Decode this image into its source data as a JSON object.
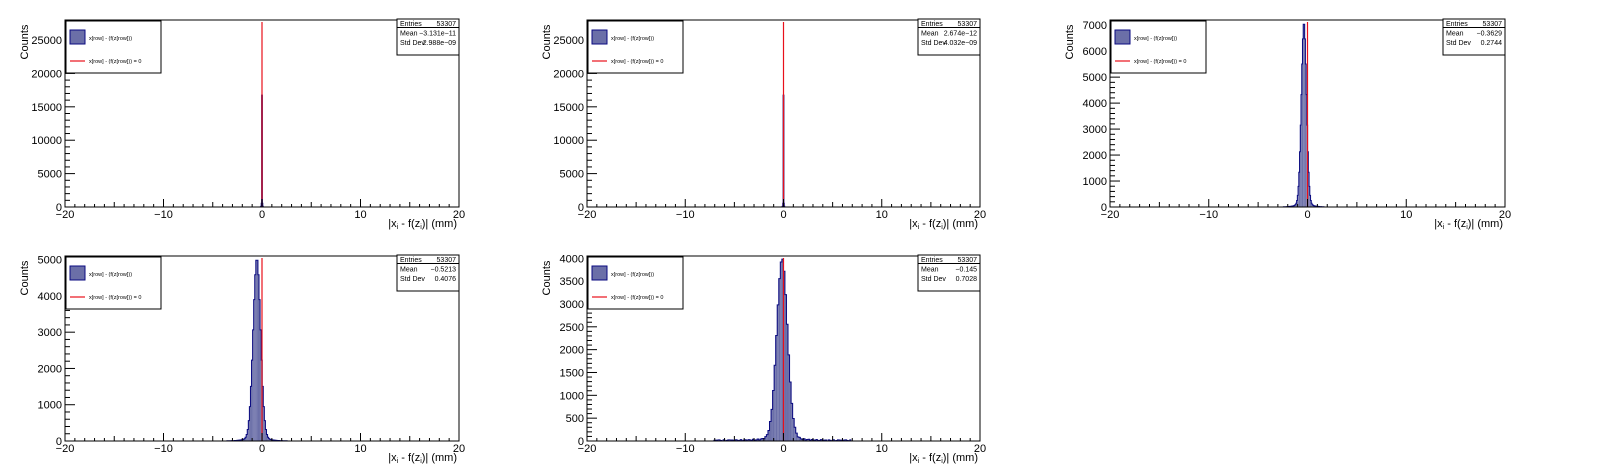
{
  "chart_data": [
    {
      "type": "histogram",
      "xlabel": "|x_i - f(z_i)| (mm)",
      "ylabel": "Counts",
      "xlim": [
        -20,
        20
      ],
      "ylim": [
        0,
        28000
      ],
      "yticks": [
        0,
        5000,
        10000,
        15000,
        20000,
        25000
      ],
      "xticks": [
        -20,
        -10,
        0,
        10,
        20
      ],
      "legend": {
        "position": "top-left",
        "entries": [
          "x[row] - (f(z[row]))",
          "x[row] - (f(z[row])) = 0"
        ]
      },
      "stats": {
        "Entries": "53307",
        "Mean": "−3.131e−11",
        "Std Dev": "2.988e−09"
      },
      "peak": {
        "center": 0.0,
        "sigma": 0.02,
        "height": 26500,
        "tail": 0
      },
      "reference_line_x": 0
    },
    {
      "type": "histogram",
      "xlabel": "|x_i - f(z_i)| (mm)",
      "ylabel": "Counts",
      "xlim": [
        -20,
        20
      ],
      "ylim": [
        0,
        28000
      ],
      "yticks": [
        0,
        5000,
        10000,
        15000,
        20000,
        25000
      ],
      "xticks": [
        -20,
        -10,
        0,
        10,
        20
      ],
      "legend": {
        "position": "top-left",
        "entries": [
          "x[row] - (f(z[row]))",
          "x[row] - (f(z[row])) = 0"
        ]
      },
      "stats": {
        "Entries": "53307",
        "Mean": "2.674e−12",
        "Std Dev": "4.032e−09"
      },
      "peak": {
        "center": 0.0,
        "sigma": 0.02,
        "height": 26500,
        "tail": 0
      },
      "reference_line_x": 0
    },
    {
      "type": "histogram",
      "xlabel": "|x_i - f(z_i)| (mm)",
      "ylabel": "Counts",
      "xlim": [
        -20,
        20
      ],
      "ylim": [
        0,
        7200
      ],
      "yticks": [
        0,
        1000,
        2000,
        3000,
        4000,
        5000,
        6000,
        7000
      ],
      "xticks": [
        -20,
        -10,
        0,
        10,
        20
      ],
      "legend": {
        "position": "top-left",
        "entries": [
          "x[row] - (f(z[row]))",
          "x[row] - (f(z[row])) = 0"
        ]
      },
      "stats": {
        "Entries": "53307",
        "Mean": "−0.3629",
        "Std Dev": "0.2744"
      },
      "peak": {
        "center": -0.36,
        "sigma": 0.26,
        "height": 6850,
        "tail": 0
      },
      "reference_line_x": 0
    },
    {
      "type": "histogram",
      "xlabel": "|x_i - f(z_i)| (mm)",
      "ylabel": "Counts",
      "xlim": [
        -20,
        20
      ],
      "ylim": [
        0,
        5100
      ],
      "yticks": [
        0,
        1000,
        2000,
        3000,
        4000,
        5000
      ],
      "xticks": [
        -20,
        -10,
        0,
        10,
        20
      ],
      "legend": {
        "position": "top-left",
        "entries": [
          "x[row] - (f(z[row]))",
          "x[row] - (f(z[row])) = 0"
        ]
      },
      "stats": {
        "Entries": "53307",
        "Mean": "−0.5213",
        "Std Dev": "0.4076"
      },
      "peak": {
        "center": -0.52,
        "sigma": 0.38,
        "height": 4850,
        "tail": 0
      },
      "reference_line_x": 0
    },
    {
      "type": "histogram",
      "xlabel": "|x_i - f(z_i)| (mm)",
      "ylabel": "Counts",
      "xlim": [
        -20,
        20
      ],
      "ylim": [
        0,
        4050
      ],
      "yticks": [
        0,
        500,
        1000,
        1500,
        2000,
        2500,
        3000,
        3500,
        4000
      ],
      "xticks": [
        -20,
        -10,
        0,
        10,
        20
      ],
      "legend": {
        "position": "top-left",
        "entries": [
          "x[row] - (f(z[row]))",
          "x[row] - (f(z[row])) = 0"
        ]
      },
      "stats": {
        "Entries": "53307",
        "Mean": "−0.145",
        "Std Dev": "0.7028"
      },
      "peak": {
        "center": -0.14,
        "sigma": 0.55,
        "height": 3850,
        "tail": 25
      },
      "reference_line_x": 0
    }
  ],
  "colors": {
    "fill": "#6b6fa8",
    "edge": "#0a0a80",
    "line": "#e8101a",
    "axis": "#000000"
  }
}
